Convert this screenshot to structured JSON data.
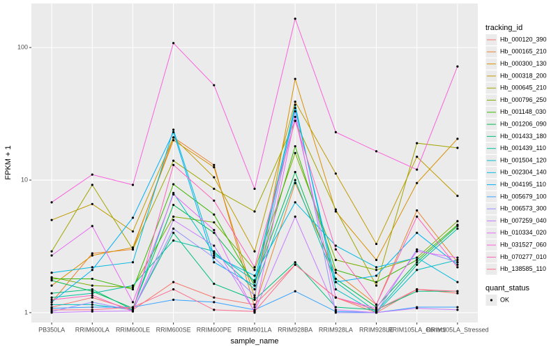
{
  "chart_data": {
    "type": "line",
    "x_label": "sample_name",
    "y_label": "FPKM + 1",
    "legend_title": "tracking_id",
    "categories": [
      "PB350LA",
      "RRIM600LA",
      "RRIM600LE",
      "RRIM600SE",
      "RRIM600PE",
      "RRIM901LA",
      "RRIM928BA",
      "RRIM928LA",
      "RRIM928LE",
      "RRIM105LA_Control",
      "RRIM105LA_Stressed"
    ],
    "log_y": true,
    "grid": true,
    "ylim": [
      0.843,
      215
    ],
    "yticks": [
      1,
      10,
      100
    ],
    "point_color": "#000000",
    "series": [
      {
        "name": "Hb_000120_390",
        "color": "#F8766D",
        "values": [
          1.1,
          1.3,
          1.05,
          1.7,
          1.3,
          1.15,
          2.3,
          1.3,
          1.0,
          1.5,
          1.4
        ]
      },
      {
        "name": "Hb_000165_210",
        "color": "#EA8331",
        "values": [
          1.2,
          2.8,
          3.0,
          21,
          13,
          1.1,
          9.5,
          2.0,
          1.15,
          5.9,
          2.4
        ]
      },
      {
        "name": "Hb_000300_130",
        "color": "#D89000",
        "values": [
          1.6,
          2.7,
          3.1,
          20,
          12.5,
          1.3,
          58,
          5.8,
          2.5,
          9.5,
          20.5
        ]
      },
      {
        "name": "Hb_000318_200",
        "color": "#C09B00",
        "values": [
          5.0,
          6.6,
          4.1,
          21,
          10.5,
          2.9,
          39,
          11.2,
          3.3,
          15,
          7.6
        ]
      },
      {
        "name": "Hb_000645_210",
        "color": "#A3A500",
        "values": [
          2.9,
          9.2,
          3.0,
          14,
          8.6,
          5.8,
          28,
          6.0,
          1.6,
          19,
          17.5
        ]
      },
      {
        "name": "Hb_000796_250",
        "color": "#7CAE00",
        "values": [
          1.85,
          1.6,
          1.55,
          5.3,
          4.8,
          2.1,
          16,
          2.5,
          2.1,
          2.6,
          4.9
        ]
      },
      {
        "name": "Hb_001148_030",
        "color": "#39B600",
        "values": [
          1.8,
          1.8,
          1.5,
          9.3,
          5.5,
          1.6,
          18,
          2.1,
          1.7,
          2.5,
          4.6
        ]
      },
      {
        "name": "Hb_001206_090",
        "color": "#00BB4E",
        "values": [
          1.75,
          1.45,
          1.08,
          6.5,
          4.0,
          1.7,
          11.5,
          1.8,
          1.1,
          2.4,
          4.5
        ]
      },
      {
        "name": "Hb_001433_180",
        "color": "#00BF7D",
        "values": [
          1.4,
          1.5,
          1.05,
          4.0,
          1.65,
          1.25,
          2.4,
          1.1,
          1.05,
          1.45,
          1.45
        ]
      },
      {
        "name": "Hb_001439_110",
        "color": "#00C1A3",
        "values": [
          1.3,
          1.4,
          1.6,
          3.5,
          2.9,
          1.5,
          10,
          1.7,
          1.02,
          2.3,
          4.3
        ]
      },
      {
        "name": "Hb_001504_120",
        "color": "#00BFC4",
        "values": [
          1.15,
          1.15,
          1.05,
          8.0,
          2.8,
          1.75,
          37,
          1.5,
          1.0,
          2.1,
          2.5
        ]
      },
      {
        "name": "Hb_002304_140",
        "color": "#00BAE0",
        "values": [
          2.0,
          2.2,
          2.4,
          24,
          2.7,
          1.9,
          6.8,
          3.2,
          2.2,
          2.6,
          1.7
        ]
      },
      {
        "name": "Hb_004195_110",
        "color": "#00B0F6",
        "values": [
          1.2,
          2.1,
          5.2,
          23,
          2.4,
          1.6,
          35,
          1.7,
          1.9,
          4.0,
          2.3
        ]
      },
      {
        "name": "Hb_005679_100",
        "color": "#35A2FF",
        "values": [
          1.08,
          1.1,
          1.1,
          1.25,
          1.2,
          1.05,
          1.45,
          1.02,
          1.0,
          1.1,
          1.1
        ]
      },
      {
        "name": "Hb_006573_300",
        "color": "#9590FF",
        "values": [
          1.02,
          1.2,
          1.04,
          4.3,
          2.6,
          1.35,
          33,
          1.0,
          1.0,
          3.0,
          2.4
        ]
      },
      {
        "name": "Hb_007259_040",
        "color": "#C77CFF",
        "values": [
          1.0,
          1.02,
          1.03,
          5.0,
          3.2,
          1.02,
          5.3,
          1.05,
          1.0,
          1.08,
          1.05
        ]
      },
      {
        "name": "Hb_010334_020",
        "color": "#E76BF3",
        "values": [
          2.7,
          4.5,
          1.2,
          7.8,
          4.2,
          1.0,
          30,
          1.3,
          1.08,
          2.9,
          2.6
        ]
      },
      {
        "name": "Hb_031527_060",
        "color": "#FA62DB",
        "values": [
          6.8,
          11,
          9.2,
          108,
          52,
          8.6,
          165,
          23,
          16.5,
          12,
          72
        ]
      },
      {
        "name": "Hb_070277_010",
        "color": "#FF62BC",
        "values": [
          1.25,
          1.35,
          1.02,
          13,
          7.0,
          2.2,
          28,
          3.0,
          1.15,
          5.3,
          2.2
        ]
      },
      {
        "name": "Hb_138585_110",
        "color": "#FF6C90",
        "values": [
          1.05,
          1.05,
          1.1,
          1.5,
          1.05,
          1.02,
          2.3,
          1.3,
          1.05,
          1.5,
          1.45
        ]
      }
    ],
    "shape_legend": {
      "title": "quant_status",
      "labels": [
        "OK"
      ]
    }
  }
}
